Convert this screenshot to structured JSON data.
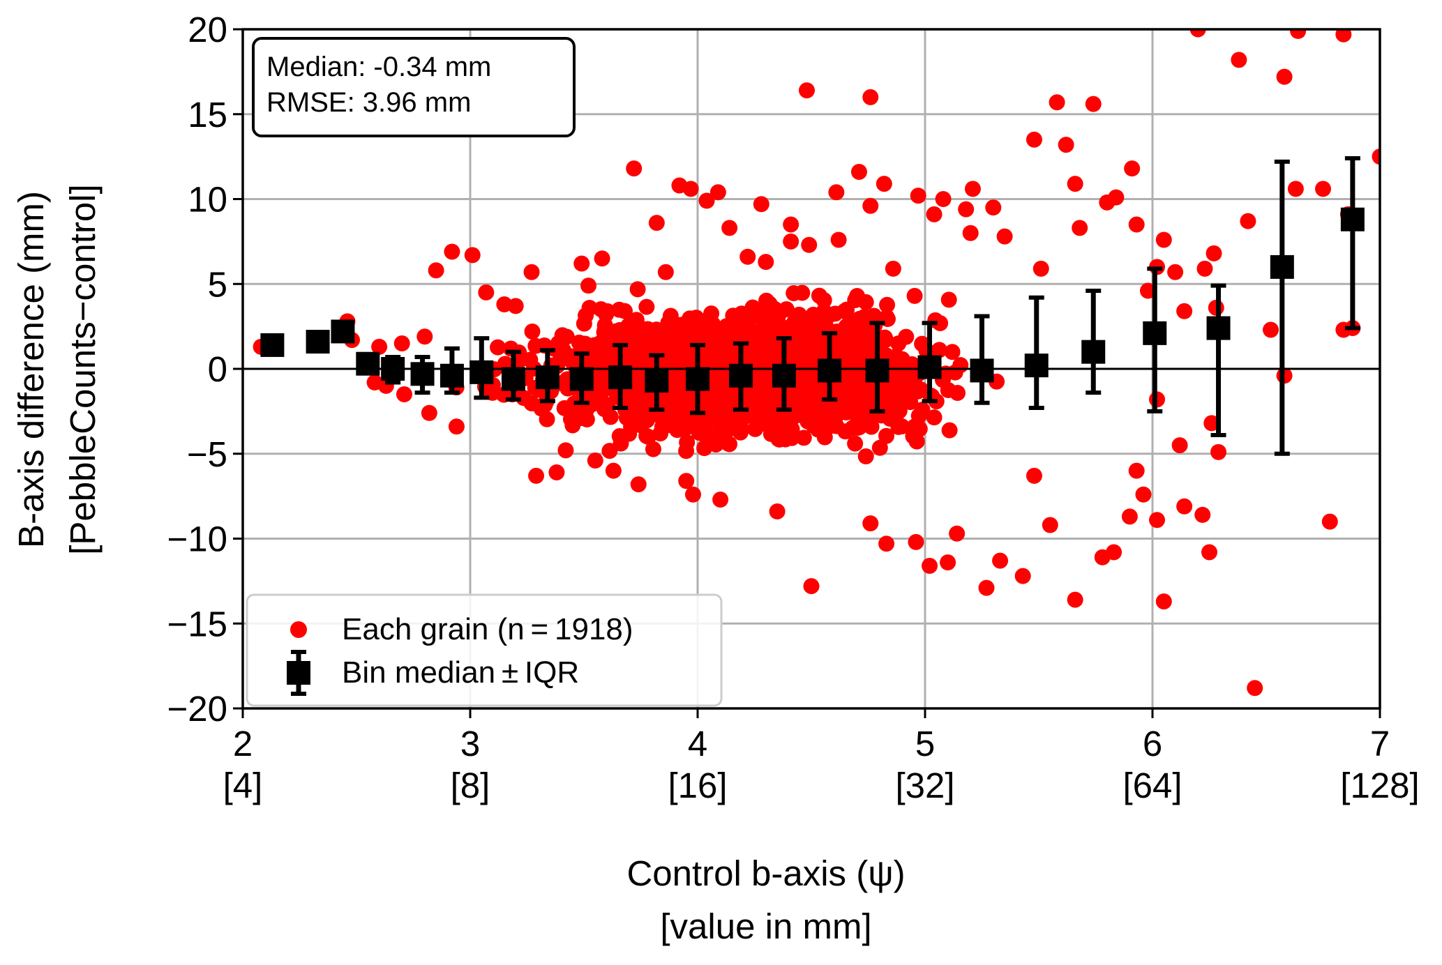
{
  "chart_data": {
    "type": "scatter",
    "xlabel": "Control b-axis (ψ)",
    "xlabel_sub": "[value in mm]",
    "ylabel": "B-axis difference (mm)",
    "ylabel_sub": "[PebbleCounts−control]",
    "xlim": [
      2,
      7
    ],
    "ylim": [
      -20,
      20
    ],
    "grid": true,
    "x_ticks": [
      {
        "value": 2,
        "label": "2",
        "sub": "[4]"
      },
      {
        "value": 3,
        "label": "3",
        "sub": "[8]"
      },
      {
        "value": 4,
        "label": "4",
        "sub": "[16]"
      },
      {
        "value": 5,
        "label": "5",
        "sub": "[32]"
      },
      {
        "value": 6,
        "label": "6",
        "sub": "[64]"
      },
      {
        "value": 7,
        "label": "7",
        "sub": "[128]"
      }
    ],
    "y_ticks": [
      {
        "value": 20,
        "label": "20"
      },
      {
        "value": 15,
        "label": "15"
      },
      {
        "value": 10,
        "label": "10"
      },
      {
        "value": 5,
        "label": "5"
      },
      {
        "value": 0,
        "label": "0"
      },
      {
        "value": -5,
        "label": "−5"
      },
      {
        "value": -10,
        "label": "−10"
      },
      {
        "value": -15,
        "label": "−15"
      },
      {
        "value": -20,
        "label": "−20"
      }
    ],
    "annotation": {
      "line1": "Median: -0.34 mm",
      "line2": "RMSE: 3.96 mm",
      "placement": "top-left"
    },
    "legend": {
      "placement": "lower-left",
      "entries": [
        {
          "label": "Each grain (n = 1918)",
          "marker": "circle"
        },
        {
          "label": "Bin median ± IQR",
          "marker": "square-errorbar"
        }
      ]
    },
    "colors": {
      "grains": "#ff0000",
      "bins": "#000000",
      "grid": "#b0b0b0"
    },
    "series": [
      {
        "name": "Each grain (n = 1918)",
        "n": 1918,
        "points_explicit": [
          [
            2.08,
            1.3
          ],
          [
            2.33,
            1.8
          ],
          [
            2.46,
            2.8
          ],
          [
            2.48,
            1.7
          ],
          [
            2.6,
            1.3
          ],
          [
            2.7,
            1.5
          ],
          [
            2.92,
            6.9
          ],
          [
            3.01,
            6.7
          ],
          [
            2.85,
            5.8
          ],
          [
            3.07,
            4.5
          ],
          [
            3.27,
            5.7
          ],
          [
            3.49,
            6.2
          ],
          [
            3.52,
            4.9
          ],
          [
            3.58,
            6.5
          ],
          [
            3.86,
            5.7
          ],
          [
            3.72,
            11.8
          ],
          [
            3.82,
            8.6
          ],
          [
            3.92,
            10.8
          ],
          [
            3.97,
            10.6
          ],
          [
            4.04,
            9.9
          ],
          [
            4.09,
            10.4
          ],
          [
            4.14,
            8.3
          ],
          [
            4.22,
            6.6
          ],
          [
            4.28,
            9.7
          ],
          [
            4.3,
            6.3
          ],
          [
            4.41,
            8.5
          ],
          [
            4.41,
            7.5
          ],
          [
            4.48,
            16.4
          ],
          [
            4.49,
            7.3
          ],
          [
            4.61,
            10.4
          ],
          [
            4.62,
            7.6
          ],
          [
            4.71,
            11.6
          ],
          [
            4.76,
            9.6
          ],
          [
            4.76,
            16.0
          ],
          [
            4.82,
            10.9
          ],
          [
            4.86,
            5.9
          ],
          [
            4.97,
            10.2
          ],
          [
            5.04,
            9.1
          ],
          [
            5.08,
            10.0
          ],
          [
            5.18,
            9.4
          ],
          [
            5.2,
            8.0
          ],
          [
            5.21,
            10.6
          ],
          [
            5.3,
            9.5
          ],
          [
            5.35,
            7.8
          ],
          [
            5.48,
            13.5
          ],
          [
            5.51,
            5.9
          ],
          [
            5.58,
            15.7
          ],
          [
            5.62,
            13.2
          ],
          [
            5.66,
            10.9
          ],
          [
            5.68,
            8.3
          ],
          [
            5.74,
            15.6
          ],
          [
            5.8,
            9.8
          ],
          [
            5.84,
            10.1
          ],
          [
            5.91,
            11.8
          ],
          [
            5.93,
            8.5
          ],
          [
            5.98,
            4.6
          ],
          [
            6.02,
            6.0
          ],
          [
            6.05,
            7.6
          ],
          [
            6.1,
            5.7
          ],
          [
            6.14,
            3.4
          ],
          [
            6.2,
            20.0
          ],
          [
            6.23,
            5.9
          ],
          [
            6.27,
            6.8
          ],
          [
            6.28,
            3.6
          ],
          [
            6.38,
            18.2
          ],
          [
            6.42,
            8.7
          ],
          [
            6.58,
            17.2
          ],
          [
            6.64,
            19.9
          ],
          [
            6.63,
            10.6
          ],
          [
            6.75,
            10.6
          ],
          [
            6.84,
            19.7
          ],
          [
            6.86,
            9.1
          ],
          [
            6.88,
            2.4
          ],
          [
            7.0,
            12.5
          ],
          [
            6.52,
            2.3
          ],
          [
            6.58,
            -0.4
          ],
          [
            6.84,
            2.3
          ],
          [
            6.78,
            -9.0
          ],
          [
            6.45,
            -18.8
          ],
          [
            6.05,
            -13.7
          ],
          [
            6.02,
            -8.9
          ],
          [
            6.14,
            -8.1
          ],
          [
            6.22,
            -8.6
          ],
          [
            6.25,
            -10.8
          ],
          [
            6.29,
            -4.9
          ],
          [
            6.26,
            -3.2
          ],
          [
            6.12,
            -4.5
          ],
          [
            6.02,
            -1.8
          ],
          [
            5.93,
            -6.0
          ],
          [
            5.96,
            -7.4
          ],
          [
            5.9,
            -8.7
          ],
          [
            5.83,
            -10.8
          ],
          [
            5.78,
            -11.1
          ],
          [
            5.66,
            -13.6
          ],
          [
            5.55,
            -9.2
          ],
          [
            5.48,
            -6.3
          ],
          [
            5.43,
            -12.2
          ],
          [
            5.33,
            -11.3
          ],
          [
            5.27,
            -12.9
          ],
          [
            5.14,
            -9.7
          ],
          [
            5.1,
            -11.4
          ],
          [
            5.02,
            -11.6
          ],
          [
            4.96,
            -10.2
          ],
          [
            4.83,
            -10.3
          ],
          [
            4.76,
            -9.1
          ],
          [
            4.5,
            -12.8
          ],
          [
            4.35,
            -8.4
          ],
          [
            4.1,
            -7.7
          ],
          [
            3.98,
            -7.4
          ],
          [
            3.95,
            -6.6
          ],
          [
            3.74,
            -6.8
          ],
          [
            3.38,
            -6.1
          ],
          [
            3.29,
            -6.3
          ],
          [
            3.63,
            -6.0
          ],
          [
            3.55,
            -5.4
          ],
          [
            3.42,
            -4.8
          ],
          [
            2.94,
            -3.4
          ],
          [
            2.82,
            -2.6
          ],
          [
            2.71,
            -1.5
          ],
          [
            2.63,
            -1.0
          ],
          [
            2.58,
            -0.8
          ],
          [
            2.8,
            1.9
          ],
          [
            3.15,
            3.8
          ],
          [
            3.2,
            3.7
          ]
        ],
        "cloud": {
          "x_range": [
            2.55,
            6.3
          ],
          "y_spread_by_x": [
            [
              2.6,
              1.0
            ],
            [
              3.0,
              2.6
            ],
            [
              3.6,
              3.6
            ],
            [
              4.2,
              3.8
            ],
            [
              4.8,
              4.2
            ],
            [
              5.4,
              4.6
            ],
            [
              6.0,
              5.4
            ]
          ]
        }
      },
      {
        "name": "Bin median ± IQR",
        "points": [
          {
            "x": 2.13,
            "y": 1.4,
            "lo": 1.4,
            "hi": 1.4
          },
          {
            "x": 2.33,
            "y": 1.6,
            "lo": 1.6,
            "hi": 1.6
          },
          {
            "x": 2.44,
            "y": 2.2,
            "lo": 2.2,
            "hi": 2.2
          },
          {
            "x": 2.55,
            "y": 0.3,
            "lo": 0.3,
            "hi": 0.3
          },
          {
            "x": 2.66,
            "y": 0.0,
            "lo": -0.8,
            "hi": 0.7
          },
          {
            "x": 2.79,
            "y": -0.3,
            "lo": -1.4,
            "hi": 0.7
          },
          {
            "x": 2.92,
            "y": -0.4,
            "lo": -1.4,
            "hi": 1.2
          },
          {
            "x": 3.05,
            "y": -0.2,
            "lo": -1.7,
            "hi": 1.8
          },
          {
            "x": 3.19,
            "y": -0.6,
            "lo": -1.8,
            "hi": 1.0
          },
          {
            "x": 3.34,
            "y": -0.5,
            "lo": -1.9,
            "hi": 1.1
          },
          {
            "x": 3.49,
            "y": -0.6,
            "lo": -2.0,
            "hi": 0.9
          },
          {
            "x": 3.66,
            "y": -0.5,
            "lo": -2.3,
            "hi": 1.4
          },
          {
            "x": 3.82,
            "y": -0.7,
            "lo": -2.4,
            "hi": 0.8
          },
          {
            "x": 4.0,
            "y": -0.6,
            "lo": -2.6,
            "hi": 1.4
          },
          {
            "x": 4.19,
            "y": -0.4,
            "lo": -2.4,
            "hi": 1.5
          },
          {
            "x": 4.38,
            "y": -0.4,
            "lo": -2.4,
            "hi": 1.8
          },
          {
            "x": 4.58,
            "y": -0.1,
            "lo": -1.8,
            "hi": 2.1
          },
          {
            "x": 4.79,
            "y": -0.1,
            "lo": -2.5,
            "hi": 2.7
          },
          {
            "x": 5.02,
            "y": 0.1,
            "lo": -1.9,
            "hi": 2.7
          },
          {
            "x": 5.25,
            "y": -0.1,
            "lo": -2.0,
            "hi": 3.1
          },
          {
            "x": 5.49,
            "y": 0.2,
            "lo": -2.3,
            "hi": 4.2
          },
          {
            "x": 5.74,
            "y": 1.0,
            "lo": -1.4,
            "hi": 4.6
          },
          {
            "x": 6.01,
            "y": 2.1,
            "lo": -2.5,
            "hi": 5.9
          },
          {
            "x": 6.29,
            "y": 2.4,
            "lo": -3.9,
            "hi": 4.9
          },
          {
            "x": 6.57,
            "y": 6.0,
            "lo": -5.0,
            "hi": 12.2
          },
          {
            "x": 6.88,
            "y": 8.8,
            "lo": 2.4,
            "hi": 12.4
          }
        ]
      }
    ]
  }
}
